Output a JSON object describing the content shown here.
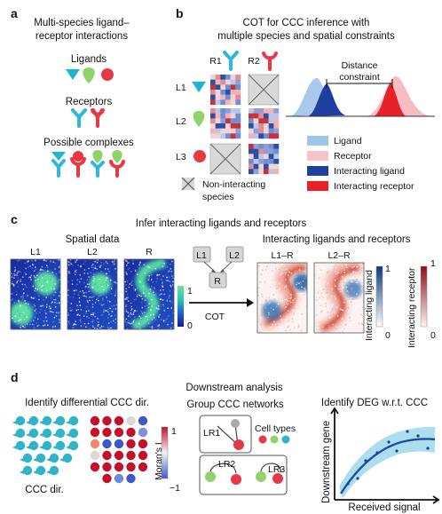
{
  "panel_a": {
    "label": "a",
    "title_line1": "Multi-species ligand–",
    "title_line2": "receptor interactions",
    "ligands": "Ligands",
    "receptors": "Receptors",
    "complexes": "Possible complexes"
  },
  "panel_b": {
    "label": "b",
    "title_line1": "COT for CCC inference with",
    "title_line2": "multiple species and spatial constraints",
    "rows": [
      "L1",
      "L2",
      "L3"
    ],
    "cols": [
      "R1",
      "R2"
    ],
    "noninteracting_line1": "Non-interacting",
    "noninteracting_line2": "species",
    "distance_line1": "Distance",
    "distance_line2": "constraint",
    "legend": [
      "Ligand",
      "Receptor",
      "Interacting ligand",
      "Interacting receptor"
    ],
    "colors": {
      "ligand": "#9fc5ea",
      "receptor": "#f7c3c8",
      "int_ligand": "#1f3f9e",
      "int_receptor": "#e8202a"
    }
  },
  "panel_c": {
    "label": "c",
    "title": "Infer interacting ligands and receptors",
    "spatial_title": "Spatial data",
    "spatial_panels": [
      "L1",
      "L2",
      "R"
    ],
    "colorbar_max": "1",
    "colorbar_min": "0",
    "flow_nodes": [
      "L1",
      "L2",
      "R"
    ],
    "arrow_label": "COT",
    "result_title": "Interacting ligands and receptors",
    "result_panels": [
      "L1–R",
      "L2–R"
    ],
    "cb_lig_label": "Interacting ligand",
    "cb_rec_label": "Interacting receptor",
    "cb_lig_max": "1",
    "cb_lig_min": "0",
    "cb_rec_max": "1",
    "cb_rec_min": "0"
  },
  "panel_d": {
    "label": "d",
    "title": "Downstream analysis",
    "diff_title": "Identify differential CCC dir.",
    "ccc_dir": "CCC dir.",
    "morans_label": "Moran's I",
    "morans_max": "1",
    "morans_min": "−1",
    "network_title": "Group CCC networks",
    "network_nodes": [
      "LR1",
      "LR2",
      "LR3"
    ],
    "cell_types": "Cell types",
    "deg_title": "Identify DEG w.r.t. CCC",
    "deg_ylabel": "Downstream gene",
    "deg_xlabel": "Received signal"
  }
}
